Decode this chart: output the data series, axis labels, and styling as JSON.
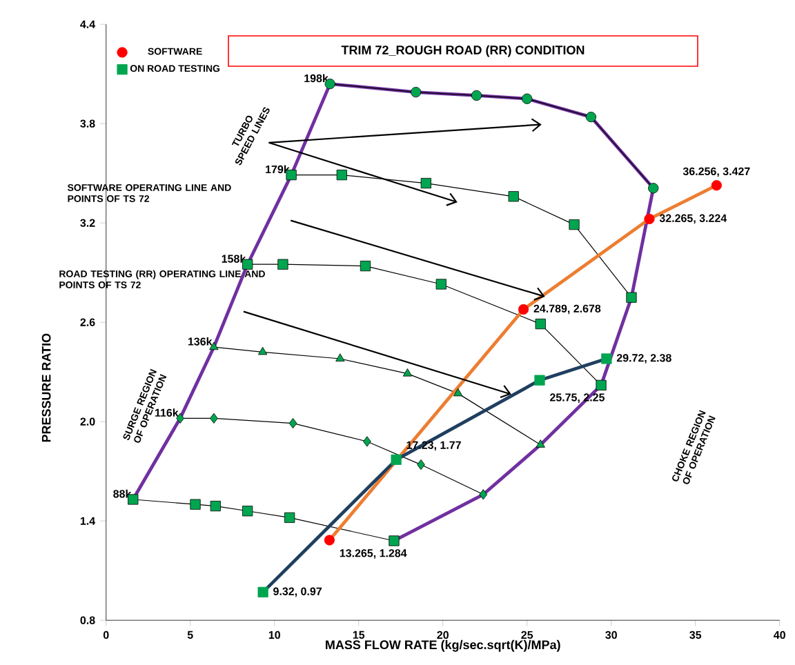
{
  "chart_data": {
    "type": "line",
    "title": "TRIM  72_ROUGH ROAD (RR) CONDITION",
    "xlabel": "MASS FLOW RATE  (kg/sec.sqrt(K)/MPa)",
    "ylabel": "PRESSURE  RATIO",
    "xlim": [
      0,
      40
    ],
    "xticks": [
      0,
      5,
      10,
      15,
      20,
      25,
      30,
      35,
      40
    ],
    "ylim": [
      0.8,
      4.4
    ],
    "yticks": [
      0.8,
      1.4,
      {
        "value": 2,
        "label": "2.0"
      },
      2.6,
      3.2,
      3.8,
      4.4
    ],
    "legend": "top left",
    "series": [
      {
        "type": "line",
        "color": "#7030a0",
        "marker": "none",
        "x": [
          1.6,
          4.4,
          6.4,
          8.4,
          11.0,
          13.3,
          18.4,
          22.0,
          25.0,
          28.8,
          32.5,
          31.2,
          29.4,
          25.8,
          22.4,
          17.1
        ],
        "values": [
          1.53,
          2.02,
          2.45,
          2.95,
          3.49,
          4.04,
          3.99,
          3.97,
          3.95,
          3.84,
          3.41,
          2.75,
          2.22,
          1.86,
          1.56,
          1.28
        ]
      },
      {
        "name": "198k",
        "type": "line",
        "marker": "circle",
        "color": "#00a550",
        "x": [
          13.3,
          18.4,
          22.0,
          25.0,
          28.8,
          32.5
        ],
        "values": [
          4.04,
          3.99,
          3.97,
          3.95,
          3.84,
          3.41
        ]
      },
      {
        "name": "179k",
        "type": "line",
        "marker": "square",
        "color": "#00a550",
        "x": [
          11.0,
          14.0,
          19.0,
          24.2,
          27.8,
          31.2
        ],
        "values": [
          3.49,
          3.49,
          3.44,
          3.36,
          3.19,
          2.75
        ]
      },
      {
        "name": "158k",
        "type": "line",
        "marker": "square",
        "color": "#00a550",
        "x": [
          8.4,
          10.5,
          15.4,
          19.9,
          25.8,
          29.4
        ],
        "values": [
          2.95,
          2.95,
          2.94,
          2.83,
          2.59,
          2.22
        ]
      },
      {
        "name": "136k",
        "type": "line",
        "marker": "triangle",
        "color": "#00a550",
        "x": [
          6.4,
          9.3,
          13.9,
          17.9,
          20.9,
          25.8
        ],
        "values": [
          2.45,
          2.42,
          2.38,
          2.29,
          2.17,
          1.86
        ]
      },
      {
        "name": "116k",
        "type": "line",
        "marker": "diamond",
        "color": "#00a550",
        "x": [
          4.4,
          6.4,
          11.1,
          15.5,
          18.7,
          22.4
        ],
        "values": [
          2.02,
          2.02,
          1.99,
          1.88,
          1.74,
          1.56
        ]
      },
      {
        "name": "88k",
        "type": "line",
        "marker": "square",
        "color": "#00a550",
        "x": [
          1.6,
          5.3,
          6.5,
          8.4,
          10.9,
          17.1
        ],
        "values": [
          1.53,
          1.5,
          1.49,
          1.46,
          1.42,
          1.28
        ]
      },
      {
        "type": "line",
        "color": "#ed7d31",
        "marker": "none",
        "x": [
          13.265,
          24.789,
          32.265,
          36.256
        ],
        "values": [
          1.284,
          2.678,
          3.224,
          3.427
        ]
      },
      {
        "type": "line",
        "color": "#1f3f5f",
        "marker": "none",
        "x": [
          9.32,
          17.23,
          25.75,
          29.72
        ],
        "values": [
          0.97,
          1.77,
          2.25,
          2.38
        ]
      },
      {
        "name": "SOFTWARE",
        "type": "scatter",
        "marker": "circle",
        "color": "#ff0000",
        "x": [
          13.265,
          24.789,
          32.265,
          36.256
        ],
        "values": [
          1.284,
          2.678,
          3.224,
          3.427
        ],
        "value_labels": [
          "13.265, 1.284",
          "24.789, 2.678",
          "32.265, 3.224",
          "36.256, 3.427"
        ]
      },
      {
        "name": "ON ROAD TESTING",
        "type": "scatter",
        "marker": "square",
        "color": "#00a550",
        "x": [
          9.32,
          17.23,
          25.75,
          29.72
        ],
        "values": [
          0.97,
          1.77,
          2.25,
          2.38
        ],
        "value_labels": [
          "9.32, 0.97",
          "17.23, 1.77",
          "25.75, 2.25",
          "29.72, 2.38"
        ]
      }
    ],
    "annotations": [
      "TURBO SPEED LINES",
      "SOFTWARE  OPERATING LINE AND  POINTS OF TS 72",
      "ROAD TESTING  (RR)  OPERATING LINE AND POINTS OF  TS 72",
      "SURGE REGION OF OPERATION",
      "CHOKE REGION OF OPERATION"
    ]
  }
}
